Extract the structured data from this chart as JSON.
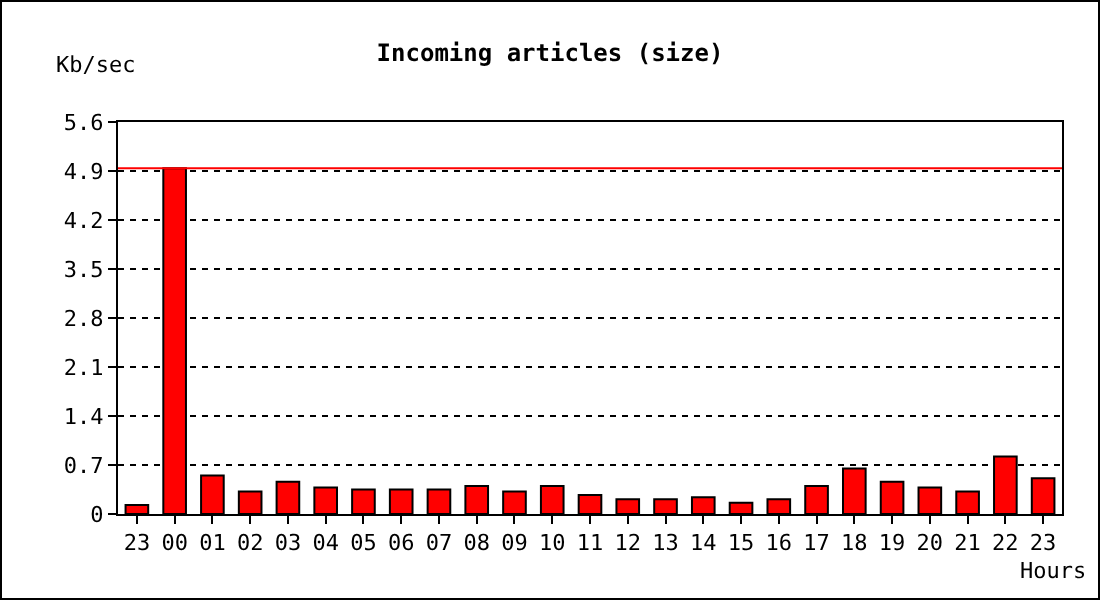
{
  "chart_data": {
    "type": "bar",
    "title": "Incoming articles (size)",
    "ylabel": "Kb/sec",
    "xlabel": "Hours",
    "categories": [
      "23",
      "00",
      "01",
      "02",
      "03",
      "04",
      "05",
      "06",
      "07",
      "08",
      "09",
      "10",
      "11",
      "12",
      "13",
      "14",
      "15",
      "16",
      "17",
      "18",
      "19",
      "20",
      "21",
      "22",
      "23"
    ],
    "values": [
      0.13,
      4.94,
      0.55,
      0.32,
      0.46,
      0.38,
      0.35,
      0.35,
      0.35,
      0.4,
      0.32,
      0.4,
      0.27,
      0.21,
      0.21,
      0.24,
      0.16,
      0.21,
      0.4,
      0.65,
      0.46,
      0.38,
      0.32,
      0.82,
      0.51
    ],
    "color": "#ff0000",
    "ylim": [
      0,
      5.6
    ],
    "yticks": [
      0,
      0.7,
      1.4,
      2.1,
      2.8,
      3.5,
      4.2,
      4.9,
      5.6
    ],
    "grid": "y",
    "ref_lines": [
      {
        "axis": "y",
        "value": 4.94,
        "color": "#ff0000"
      }
    ]
  }
}
